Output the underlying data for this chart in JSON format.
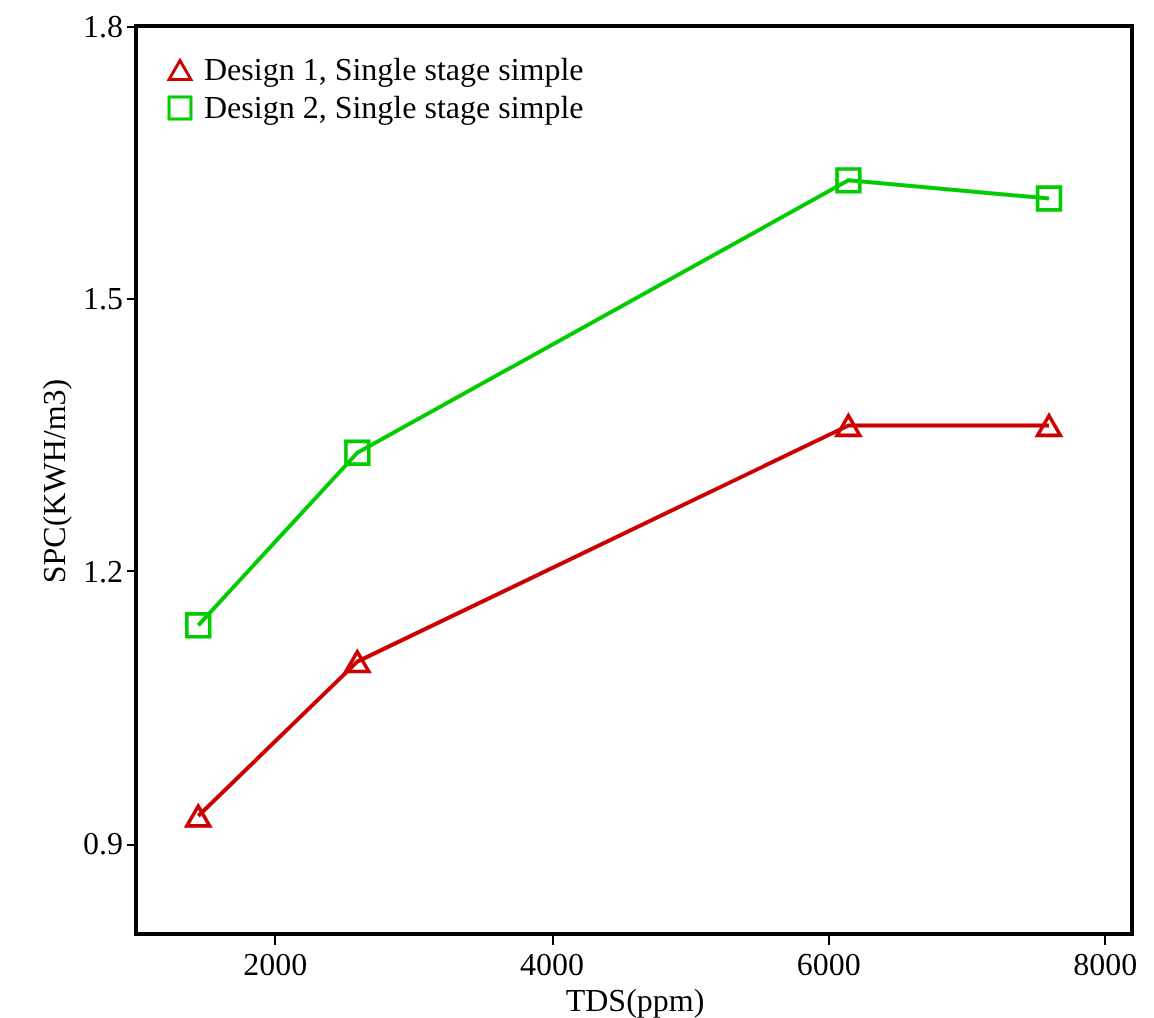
{
  "chart_data": {
    "type": "line",
    "xlabel": "TDS(ppm)",
    "ylabel": "SPC(KWH/m3)",
    "xlim": [
      1000,
      8200
    ],
    "xticks": [
      2000,
      4000,
      6000,
      8000
    ],
    "ylim": [
      0.8,
      1.8
    ],
    "yticks": [
      0.9,
      1.2,
      1.5,
      1.8
    ],
    "x": [
      1450,
      2600,
      6150,
      7600
    ],
    "series": [
      {
        "name": "Design 1, Single stage simple",
        "color": "#cc0000",
        "marker": "triangle",
        "values": [
          0.93,
          1.1,
          1.36,
          1.36
        ]
      },
      {
        "name": "Design 2, Single stage simple",
        "color": "#00cc00",
        "marker": "square",
        "values": [
          1.14,
          1.33,
          1.63,
          1.61
        ]
      }
    ],
    "legend": "top left",
    "grid": false,
    "line_style": "solid"
  }
}
